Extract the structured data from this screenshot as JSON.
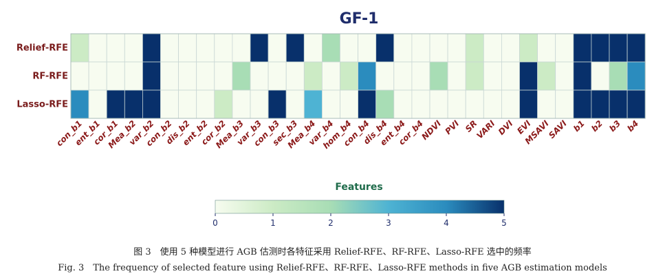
{
  "chart_data": {
    "type": "heatmap",
    "title": "GF-1",
    "xlabel": "Features",
    "rows": [
      "Relief-RFE",
      "RF-RFE",
      "Lasso-RFE"
    ],
    "columns": [
      "con_b1",
      "ent_b1",
      "cor_b1",
      "Mea_b2",
      "var_b2",
      "con_b2",
      "dis_b2",
      "ent_b2",
      "cor_b2",
      "Mea_b3",
      "var_b3",
      "con_b3",
      "sec_b3",
      "Mea_b4",
      "var_b4",
      "hom_b4",
      "con_b4",
      "dis_b4",
      "ent_b4",
      "cor_b4",
      "NDVI",
      "PVI",
      "SR",
      "VARI",
      "DVI",
      "EVI",
      "MSAVI",
      "SAVI",
      "b1",
      "b2",
      "b3",
      "b4"
    ],
    "values": [
      [
        1,
        0,
        0,
        0,
        5,
        0,
        0,
        0,
        0,
        0,
        5,
        0,
        5,
        0,
        2,
        0,
        0,
        5,
        0,
        0,
        0,
        0,
        1,
        0,
        0,
        1,
        0,
        0,
        5,
        5,
        5,
        5
      ],
      [
        0,
        0,
        0,
        0,
        5,
        0,
        0,
        0,
        0,
        2,
        0,
        0,
        0,
        1,
        0,
        1,
        4,
        0,
        0,
        0,
        2,
        0,
        1,
        0,
        0,
        5,
        1,
        0,
        5,
        0,
        2,
        4
      ],
      [
        4,
        0,
        5,
        5,
        5,
        0,
        0,
        0,
        1,
        0,
        0,
        5,
        0,
        3,
        0,
        0,
        5,
        2,
        0,
        0,
        0,
        0,
        0,
        0,
        0,
        5,
        0,
        0,
        5,
        5,
        5,
        5
      ]
    ],
    "colorbar": {
      "min": 0,
      "max": 5,
      "ticks": [
        0,
        1,
        2,
        3,
        4,
        5
      ],
      "colormap": "GnBu",
      "colors": [
        "#f7fcf0",
        "#ccebc5",
        "#7bccc4",
        "#4eb3d3",
        "#2b8cbe",
        "#08306b"
      ]
    }
  },
  "caption": {
    "cn": "图 3　使用 5 种模型进行 AGB 估测时各特征采用 Relief-RFE、RF-RFE、Lasso-RFE 选中的频率",
    "en": "Fig. 3　The frequency of selected feature using Relief-RFE、RF-RFE、Lasso-RFE methods in five AGB estimation models"
  }
}
